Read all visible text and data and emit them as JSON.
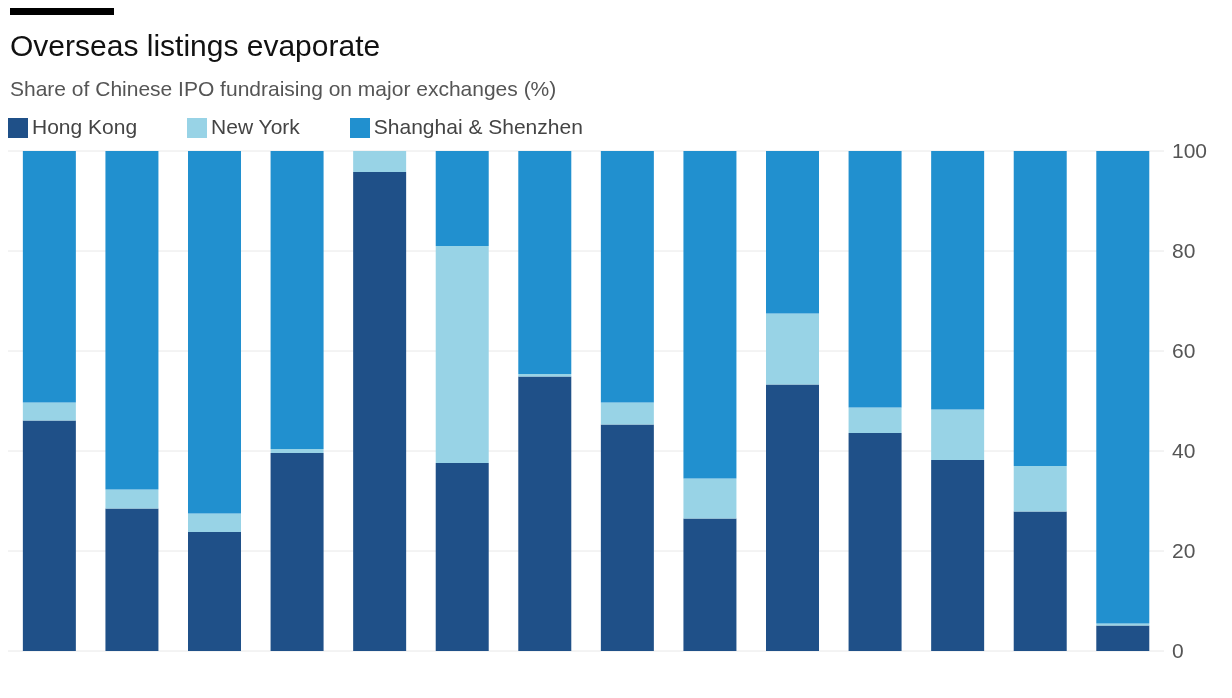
{
  "chart_data": {
    "type": "bar",
    "title": "Overseas listings evaporate",
    "subtitle": "Share of Chinese IPO fundraising on major exchanges (%)",
    "categories": [
      null,
      null,
      null,
      null,
      null,
      null,
      null,
      null,
      null,
      null,
      null,
      null,
      null,
      null
    ],
    "stacked": true,
    "legend": "top left",
    "grid": "y",
    "tick_labels": "y",
    "ylim": [
      0,
      100
    ],
    "yticks": [
      0,
      20,
      40,
      60,
      80,
      100
    ],
    "series": [
      {
        "name": "Hong Kong",
        "color": "#1f5088",
        "values": [
          46.1,
          28.5,
          23.8,
          39.6,
          95.8,
          37.6,
          54.9,
          45.3,
          26.5,
          53.3,
          43.6,
          38.2,
          27.9,
          5.1
        ]
      },
      {
        "name": "New York",
        "color": "#98d3e6",
        "values": [
          3.6,
          3.8,
          3.7,
          0.8,
          4.2,
          43.4,
          0.5,
          4.4,
          8.0,
          14.2,
          5.1,
          10.1,
          9.1,
          0.4
        ]
      },
      {
        "name": "Shanghai & Shenzhen",
        "color": "#2190cf",
        "values": [
          50.3,
          67.7,
          72.5,
          59.6,
          0,
          19.0,
          44.6,
          50.3,
          65.5,
          32.5,
          51.3,
          51.7,
          63.0,
          94.5
        ]
      }
    ]
  }
}
